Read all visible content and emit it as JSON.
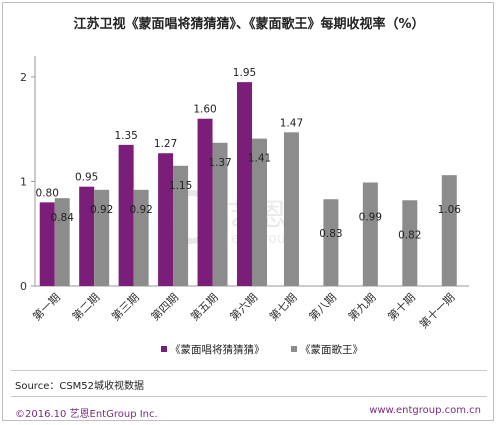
{
  "title": "江苏卫视《蒙面唱将猜猜猜》、《蒙面歌王》每期收视率（%）",
  "source": "Source：CSM52城收视数据",
  "footer": {
    "copyright": "©2016.10 艺恩EntGroup Inc.",
    "website": "www.entgroup.com.cn"
  },
  "watermark": {
    "cn": "艺恩",
    "en": "entgroup"
  },
  "chart_data": {
    "type": "bar",
    "title": "江苏卫视《蒙面唱将猜猜猜》、《蒙面歌王》每期收视率（%）",
    "categories": [
      "第一期",
      "第二期",
      "第三期",
      "第四期",
      "第五期",
      "第六期",
      "第七期",
      "第八期",
      "第九期",
      "第十期",
      "第十一期"
    ],
    "series": [
      {
        "name": "《蒙面唱将猜猜猜》",
        "color": "#7b1e7a",
        "values": [
          0.8,
          0.95,
          1.35,
          1.27,
          1.6,
          1.95,
          null,
          null,
          null,
          null,
          null
        ]
      },
      {
        "name": "《蒙面歌王》",
        "color": "#8c8c8c",
        "values": [
          0.84,
          0.92,
          0.92,
          1.15,
          1.37,
          1.41,
          1.47,
          0.83,
          0.99,
          0.82,
          1.06
        ]
      }
    ],
    "labels": [
      [
        "0.80",
        "0.95",
        "1.35",
        "1.27",
        "1.60",
        "1.95",
        "",
        "",
        "",
        "",
        ""
      ],
      [
        "0.84",
        "0.92",
        "0.92",
        "1.15",
        "1.37",
        "1.41",
        "1.47",
        "0.83",
        "0.99",
        "0.82",
        "1.06"
      ]
    ],
    "yticks": [
      0,
      1,
      2
    ],
    "ytick_labels": [
      "0",
      "1",
      "2"
    ],
    "ylim": [
      0,
      2.2
    ],
    "xlabel": "",
    "ylabel": "",
    "grid": false,
    "legend": "bottom"
  }
}
